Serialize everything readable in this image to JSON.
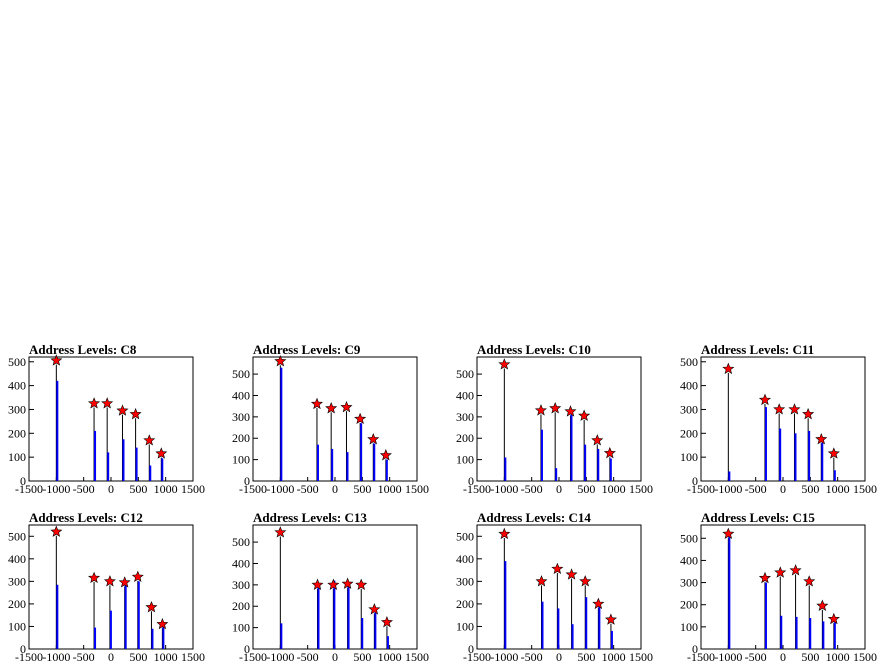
{
  "colors": {
    "frame": "#000000",
    "histogram": "#000000",
    "fill": "#0000ff",
    "marker": "#ff0000",
    "marker_outline": "#000000"
  },
  "chart_data": [
    {
      "type": "bar",
      "title": "Address Levels: C8",
      "xlabel": "",
      "ylabel": "",
      "xlim": [
        -1500,
        1500
      ],
      "ylim": [
        0,
        520
      ],
      "xticks": [
        "-1500",
        "-1000",
        "-500",
        "0",
        "500",
        "1000",
        "1500"
      ],
      "yticks": [
        "0",
        "100",
        "200",
        "300",
        "400",
        "500"
      ],
      "peaks": [
        {
          "x": -1000,
          "y": 505
        },
        {
          "x": -310,
          "y": 325
        },
        {
          "x": -70,
          "y": 325
        },
        {
          "x": 210,
          "y": 295
        },
        {
          "x": 450,
          "y": 280
        },
        {
          "x": 700,
          "y": 170
        },
        {
          "x": 920,
          "y": 115
        }
      ],
      "bars": [
        {
          "x": -1000,
          "y": 420
        },
        {
          "x": -310,
          "y": 210
        },
        {
          "x": -70,
          "y": 120
        },
        {
          "x": 210,
          "y": 175
        },
        {
          "x": 450,
          "y": 140
        },
        {
          "x": 700,
          "y": 65
        },
        {
          "x": 920,
          "y": 95
        }
      ]
    },
    {
      "type": "bar",
      "title": "Address Levels: C9",
      "xlabel": "",
      "ylabel": "",
      "xlim": [
        -1500,
        1500
      ],
      "ylim": [
        0,
        580
      ],
      "xticks": [
        "-1500",
        "-1000",
        "-500",
        "0",
        "500",
        "1000",
        "1500"
      ],
      "yticks": [
        "0",
        "100",
        "200",
        "300",
        "400",
        "500"
      ],
      "peaks": [
        {
          "x": -1000,
          "y": 560
        },
        {
          "x": -330,
          "y": 360
        },
        {
          "x": -70,
          "y": 340
        },
        {
          "x": 210,
          "y": 345
        },
        {
          "x": 460,
          "y": 290
        },
        {
          "x": 700,
          "y": 195
        },
        {
          "x": 930,
          "y": 120
        }
      ],
      "bars": [
        {
          "x": -1000,
          "y": 530
        },
        {
          "x": -330,
          "y": 170
        },
        {
          "x": -70,
          "y": 150
        },
        {
          "x": 210,
          "y": 135
        },
        {
          "x": 460,
          "y": 270
        },
        {
          "x": 700,
          "y": 175
        },
        {
          "x": 930,
          "y": 100
        }
      ]
    },
    {
      "type": "bar",
      "title": "Address Levels: C10",
      "xlabel": "",
      "ylabel": "",
      "xlim": [
        -1500,
        1500
      ],
      "ylim": [
        0,
        580
      ],
      "xticks": [
        "-1500",
        "-1000",
        "-500",
        "0",
        "500",
        "1000",
        "1500"
      ],
      "yticks": [
        "0",
        "100",
        "200",
        "300",
        "400",
        "500"
      ],
      "peaks": [
        {
          "x": -1000,
          "y": 545
        },
        {
          "x": -330,
          "y": 330
        },
        {
          "x": -70,
          "y": 340
        },
        {
          "x": 210,
          "y": 325
        },
        {
          "x": 460,
          "y": 305
        },
        {
          "x": 700,
          "y": 190
        },
        {
          "x": 930,
          "y": 130
        }
      ],
      "bars": [
        {
          "x": -1000,
          "y": 110
        },
        {
          "x": -330,
          "y": 240
        },
        {
          "x": -70,
          "y": 60
        },
        {
          "x": 210,
          "y": 310
        },
        {
          "x": 460,
          "y": 170
        },
        {
          "x": 700,
          "y": 150
        },
        {
          "x": 930,
          "y": 105
        }
      ]
    },
    {
      "type": "bar",
      "title": "Address Levels: C11",
      "xlabel": "",
      "ylabel": "",
      "xlim": [
        -1500,
        1500
      ],
      "ylim": [
        0,
        520
      ],
      "xticks": [
        "-1500",
        "-1000",
        "-500",
        "0",
        "500",
        "1000",
        "1500"
      ],
      "yticks": [
        "0",
        "100",
        "200",
        "300",
        "400",
        "500"
      ],
      "peaks": [
        {
          "x": -1000,
          "y": 470
        },
        {
          "x": -330,
          "y": 340
        },
        {
          "x": -70,
          "y": 300
        },
        {
          "x": 210,
          "y": 300
        },
        {
          "x": 460,
          "y": 280
        },
        {
          "x": 700,
          "y": 175
        },
        {
          "x": 930,
          "y": 115
        }
      ],
      "bars": [
        {
          "x": -1000,
          "y": 40
        },
        {
          "x": -330,
          "y": 310
        },
        {
          "x": -70,
          "y": 220
        },
        {
          "x": 210,
          "y": 200
        },
        {
          "x": 460,
          "y": 210
        },
        {
          "x": 700,
          "y": 160
        },
        {
          "x": 930,
          "y": 45
        }
      ]
    },
    {
      "type": "bar",
      "title": "Address Levels: C12",
      "xlabel": "",
      "ylabel": "",
      "xlim": [
        -1500,
        1500
      ],
      "ylim": [
        0,
        550
      ],
      "xticks": [
        "-1500",
        "-1000",
        "-500",
        "0",
        "500",
        "1000",
        "1500"
      ],
      "yticks": [
        "0",
        "100",
        "200",
        "300",
        "400",
        "500"
      ],
      "peaks": [
        {
          "x": -1000,
          "y": 520
        },
        {
          "x": -310,
          "y": 315
        },
        {
          "x": -20,
          "y": 300
        },
        {
          "x": 250,
          "y": 295
        },
        {
          "x": 490,
          "y": 320
        },
        {
          "x": 740,
          "y": 185
        },
        {
          "x": 940,
          "y": 110
        }
      ],
      "bars": [
        {
          "x": -1000,
          "y": 285
        },
        {
          "x": -310,
          "y": 95
        },
        {
          "x": -20,
          "y": 170
        },
        {
          "x": 250,
          "y": 290
        },
        {
          "x": 490,
          "y": 300
        },
        {
          "x": 740,
          "y": 90
        },
        {
          "x": 940,
          "y": 100
        }
      ]
    },
    {
      "type": "bar",
      "title": "Address Levels: C13",
      "xlabel": "",
      "ylabel": "",
      "xlim": [
        -1500,
        1500
      ],
      "ylim": [
        0,
        580
      ],
      "xticks": [
        "-1500",
        "-1000",
        "-500",
        "0",
        "500",
        "1000",
        "1500"
      ],
      "yticks": [
        "0",
        "100",
        "200",
        "300",
        "400",
        "500"
      ],
      "peaks": [
        {
          "x": -1000,
          "y": 545
        },
        {
          "x": -320,
          "y": 300
        },
        {
          "x": -30,
          "y": 300
        },
        {
          "x": 230,
          "y": 305
        },
        {
          "x": 480,
          "y": 300
        },
        {
          "x": 720,
          "y": 185
        },
        {
          "x": 950,
          "y": 125
        }
      ],
      "bars": [
        {
          "x": -1000,
          "y": 120
        },
        {
          "x": -320,
          "y": 290
        },
        {
          "x": -30,
          "y": 320
        },
        {
          "x": 230,
          "y": 300
        },
        {
          "x": 480,
          "y": 145
        },
        {
          "x": 720,
          "y": 170
        },
        {
          "x": 950,
          "y": 60
        }
      ]
    },
    {
      "type": "bar",
      "title": "Address Levels: C14",
      "xlabel": "",
      "ylabel": "",
      "xlim": [
        -1500,
        1500
      ],
      "ylim": [
        0,
        550
      ],
      "xticks": [
        "-1500",
        "-1000",
        "-500",
        "0",
        "500",
        "1000",
        "1500"
      ],
      "yticks": [
        "0",
        "100",
        "200",
        "300",
        "400",
        "500"
      ],
      "peaks": [
        {
          "x": -1000,
          "y": 510
        },
        {
          "x": -320,
          "y": 300
        },
        {
          "x": -30,
          "y": 355
        },
        {
          "x": 230,
          "y": 330
        },
        {
          "x": 480,
          "y": 300
        },
        {
          "x": 720,
          "y": 200
        },
        {
          "x": 950,
          "y": 130
        }
      ],
      "bars": [
        {
          "x": -1000,
          "y": 390
        },
        {
          "x": -320,
          "y": 210
        },
        {
          "x": -30,
          "y": 180
        },
        {
          "x": 230,
          "y": 110
        },
        {
          "x": 480,
          "y": 230
        },
        {
          "x": 720,
          "y": 190
        },
        {
          "x": 950,
          "y": 80
        }
      ]
    },
    {
      "type": "bar",
      "title": "Address Levels: C15",
      "xlabel": "",
      "ylabel": "",
      "xlim": [
        -1500,
        1500
      ],
      "ylim": [
        0,
        560
      ],
      "xticks": [
        "-1500",
        "-1000",
        "-500",
        "0",
        "500",
        "1000",
        "1500"
      ],
      "yticks": [
        "0",
        "100",
        "200",
        "300",
        "400",
        "500"
      ],
      "peaks": [
        {
          "x": -1000,
          "y": 520
        },
        {
          "x": -330,
          "y": 320
        },
        {
          "x": -50,
          "y": 345
        },
        {
          "x": 230,
          "y": 355
        },
        {
          "x": 480,
          "y": 305
        },
        {
          "x": 720,
          "y": 195
        },
        {
          "x": 930,
          "y": 135
        }
      ],
      "bars": [
        {
          "x": -1000,
          "y": 510
        },
        {
          "x": -330,
          "y": 300
        },
        {
          "x": -50,
          "y": 150
        },
        {
          "x": 230,
          "y": 145
        },
        {
          "x": 480,
          "y": 140
        },
        {
          "x": 720,
          "y": 125
        },
        {
          "x": 930,
          "y": 120
        }
      ]
    }
  ]
}
